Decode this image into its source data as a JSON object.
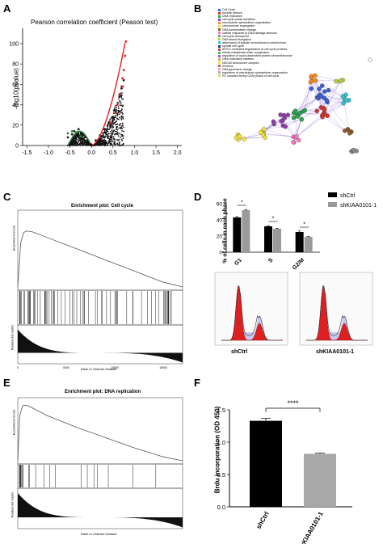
{
  "panels": {
    "A": {
      "label": "A",
      "title": "Pearson correlation coefficient (Peason test)",
      "ylabel": "-log10(pvalue)",
      "xticks": [
        "-1.5",
        "-1.0",
        "-0.5",
        "0.0",
        "0.5",
        "1.0",
        "1.5",
        "2.0"
      ],
      "yticks": [
        "0",
        "20",
        "40",
        "60",
        "80",
        "100"
      ]
    },
    "B": {
      "label": "B",
      "legend": [
        {
          "text": "Cell Cycle",
          "color": "#3b5fd0"
        },
        {
          "text": "nuclear division",
          "color": "#d6332a"
        },
        {
          "text": "DNA replication",
          "color": "#2aa34a"
        },
        {
          "text": "cell cycle phase transition",
          "color": "#8e3ea8"
        },
        {
          "text": "microtubule cytoskeleton organization",
          "color": "#f08a1e"
        },
        {
          "text": "chromosome segregation",
          "color": "#f2e33a"
        },
        {
          "text": "DNA conformation change",
          "color": "#8a5a2b"
        },
        {
          "text": "cellular response to DNA damage stimulus",
          "color": "#f47ab8"
        },
        {
          "text": "cell cycle checkpoint",
          "color": "#8c8c8c"
        },
        {
          "text": "DNA strand elongation",
          "color": "#b3d33d"
        },
        {
          "text": "attachment of spindle microtubules to kinetochore",
          "color": "#2fc3d0"
        },
        {
          "text": "spindle cell cycle",
          "color": "#2a2a8c"
        },
        {
          "text": "APC/C-mediated degradation of cell cycle proteins",
          "color": "#c94a4a"
        },
        {
          "text": "mitotic metaphase plate congression",
          "color": "#4ac94a"
        },
        {
          "text": "regulation of cyclin-dependent protein serine/threonine",
          "color": "#a05ad0"
        },
        {
          "text": "DNA replication initiation",
          "color": "#e0a040"
        },
        {
          "text": "NDC80 kinetochore complex",
          "color": "#e8e060"
        },
        {
          "text": "Kinesins",
          "color": "#a07040"
        },
        {
          "text": "DNA geometric change",
          "color": "#f0a0c8"
        },
        {
          "text": "regulation of microtubule cytoskeleton organization",
          "color": "#b0b0b0"
        },
        {
          "text": "PC complex during G2/M phase of cell cycle",
          "color": "#c8e070"
        }
      ]
    },
    "C": {
      "label": "C",
      "title": "Enrichment plot: Cell cycle",
      "ylabel_top": "Enrichment Score",
      "ylabel_bottom": "Ranked list metric",
      "xlabel": "Rank in Ordered Dataset",
      "xticks": [
        "0",
        "5000",
        "10000",
        "15000"
      ]
    },
    "D": {
      "label": "D",
      "ylabel": "% of cells in each phase",
      "legend": [
        "shCtrl",
        "shKIAA0101-1"
      ],
      "sig": "*",
      "hist_ylabel": "Number",
      "hist_xlabel": "Yellow-B Fluorescence Area (YEL-B-HLin)",
      "hist_captions": [
        "shCtrl",
        "shKIAA0101-1"
      ]
    },
    "E": {
      "label": "E",
      "title": "Enrichment plot: DNA replication",
      "ylabel_top": "Enrichment Score",
      "ylabel_bottom": "Ranked list metric",
      "xlabel": "Rank in Ordered Dataset"
    },
    "F": {
      "label": "F",
      "ylabel": "Brdu incorporation (OD 450)",
      "sig": "****"
    }
  },
  "chart_data": [
    {
      "type": "scatter",
      "panel": "A",
      "title": "Pearson correlation coefficient (Peason test)",
      "xlabel": "",
      "ylabel": "-log10(pvalue)",
      "xlim": [
        -1.6,
        2.1
      ],
      "ylim": [
        0,
        115
      ],
      "grid": false,
      "series": [
        {
          "color": "#1a1a1a",
          "x": [
            -0.55,
            -0.45,
            -0.4,
            -0.3,
            -0.2,
            -0.1,
            0.0,
            0.1,
            0.2,
            0.3,
            0.4,
            0.5,
            0.55,
            0.6,
            0.65,
            0.7,
            0.75
          ],
          "y": [
            8,
            11,
            14,
            16,
            10,
            5,
            1,
            5,
            10,
            16,
            22,
            28,
            34,
            40,
            48,
            56,
            64
          ]
        },
        {
          "color": "#e02020",
          "x": [
            0.45,
            0.55,
            0.6,
            0.65,
            0.7,
            0.72,
            0.75,
            0.78,
            0.8
          ],
          "y": [
            22,
            32,
            40,
            50,
            58,
            66,
            74,
            88,
            102
          ]
        },
        {
          "color": "#2a8a3a",
          "x": [
            -0.55,
            -0.45,
            -0.35,
            -0.25
          ],
          "y": [
            12,
            14,
            13,
            9
          ]
        }
      ]
    },
    {
      "type": "bar",
      "panel": "D",
      "categories": [
        "G1",
        "S",
        "G2/M"
      ],
      "series": [
        {
          "name": "shCtrl",
          "values": [
            43,
            32,
            25
          ]
        },
        {
          "name": "shKIAA0101-1",
          "values": [
            52,
            29,
            19
          ]
        }
      ],
      "ylabel": "% of cells in each phase",
      "ylim": [
        0,
        60
      ],
      "yticks": [
        0,
        20,
        40,
        60
      ],
      "error": [
        [
          1,
          0.8
        ],
        [
          0.8,
          0.6
        ],
        [
          1.2,
          0.6
        ]
      ]
    },
    {
      "type": "bar",
      "panel": "F",
      "categories": [
        "shCtrl",
        "shKIAA0101-1"
      ],
      "values": [
        1.33,
        0.82
      ],
      "error": [
        0.04,
        0.01
      ],
      "ylabel": "Brdu incorporation (OD 450)",
      "ylim": [
        0,
        1.5
      ],
      "yticks": [
        0.0,
        0.5,
        1.0,
        1.5
      ]
    },
    {
      "type": "line",
      "panel": "C",
      "title": "Enrichment plot: Cell cycle",
      "ylabel": "Enrichment Score",
      "xlabel": "Rank in Ordered Dataset",
      "x": [
        0,
        300,
        600,
        900,
        1500,
        3000,
        6000,
        9000,
        12000,
        15000,
        17000
      ],
      "y": [
        0.0,
        0.55,
        0.68,
        0.7,
        0.69,
        0.62,
        0.48,
        0.34,
        0.2,
        0.06,
        0.0
      ]
    },
    {
      "type": "line",
      "panel": "E",
      "title": "Enrichment plot: DNA replication",
      "ylabel": "Enrichment Score",
      "xlabel": "Rank in Ordered Dataset",
      "x": [
        0,
        200,
        500,
        800,
        1200,
        3000,
        6000,
        9000,
        12000,
        15000,
        17000
      ],
      "y": [
        0.0,
        0.7,
        0.85,
        0.86,
        0.84,
        0.7,
        0.52,
        0.36,
        0.2,
        0.06,
        0.0
      ]
    }
  ]
}
